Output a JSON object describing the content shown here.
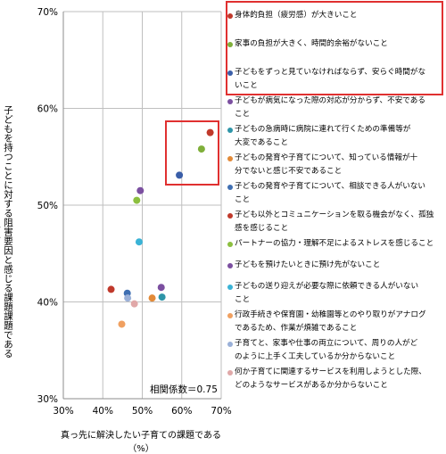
{
  "chart_data": {
    "type": "scatter",
    "xlabel": "真っ先に解決したい子育ての課題である（%）",
    "ylabel": "子どもを持つことに対する阻害要因と感じる課題課題である（%）",
    "xlim": [
      30,
      70
    ],
    "ylim": [
      30,
      70
    ],
    "x_ticks": [
      "30%",
      "40%",
      "50%",
      "60%",
      "70%"
    ],
    "y_ticks": [
      "30%",
      "40%",
      "50%",
      "60%",
      "70%"
    ],
    "grid": true,
    "legend_position": "right",
    "annotation": "相関係数＝0.75",
    "series": [
      {
        "name": "身体的負担（疲労感）が大きいこと",
        "color": "#c0392b",
        "x": 67.2,
        "y": 57.5
      },
      {
        "name": "家事の負担が大きく、時間的余裕がないこと",
        "color": "#7faf3a",
        "x": 65.0,
        "y": 55.8
      },
      {
        "name": "子どもをずっと見ていなければならず、安らぐ時間がないこと",
        "color": "#3a5ea8",
        "x": 59.4,
        "y": 53.1
      },
      {
        "name": "子どもが病気になった際の対応が分からず、不安であること",
        "color": "#7b4fa0",
        "x": 49.5,
        "y": 51.5
      },
      {
        "name": "子どもの急病時に病院に連れて行くための準備等が大変であること",
        "color": "#2e95a8",
        "x": 55.0,
        "y": 40.5
      },
      {
        "name": "子どもの発育や子育てについて、知っている情報が十分でないと感じ不安であること",
        "color": "#e28a38",
        "x": 52.5,
        "y": 40.4
      },
      {
        "name": "子どもの発育や子育てについて、相談できる人がいないこと",
        "color": "#3f6fb2",
        "x": 46.2,
        "y": 40.9
      },
      {
        "name": "子ども以外とコミュニケーションを取る機会がなく、孤独感を感じること",
        "color": "#c0392b",
        "x": 42.1,
        "y": 41.3
      },
      {
        "name": "パートナーの協力・理解不足によるストレスを感じること",
        "color": "#8cbf3f",
        "x": 48.6,
        "y": 50.5
      },
      {
        "name": "子どもを預けたいときに預け先がないこと",
        "color": "#7b4fa0",
        "x": 54.8,
        "y": 41.5
      },
      {
        "name": "子どもの送り迎えが必要な際に依頼できる人がいないこと",
        "color": "#3ab3d6",
        "x": 49.2,
        "y": 46.2
      },
      {
        "name": "行政手続きや保育園・幼稚園等とのやり取りがアナログであるため、作業が煩雑であること",
        "color": "#f0a060",
        "x": 44.8,
        "y": 37.7
      },
      {
        "name": "子育てと、家事や仕事の両立について、周りの人がどのように上手く工夫しているか分からないこと",
        "color": "#9ab0d8",
        "x": 46.3,
        "y": 40.4
      },
      {
        "name": "何か子育てに関連するサービスを利用しようとした際、どのようなサービスがあるか分からないこと",
        "color": "#e0a8a8",
        "x": 48.0,
        "y": 39.8
      }
    ]
  },
  "legend": {
    "items": [
      {
        "lines": [
          "身体的負担（疲労感）が大きいこと"
        ]
      },
      {
        "lines": [
          "家事の負担が大きく、時間的余裕がないこと"
        ]
      },
      {
        "lines": [
          "子どもをずっと見ていなければならず、安らぐ時間がな",
          "いこと"
        ]
      },
      {
        "lines": [
          "子どもが病気になった際の対応が分からず、不安である",
          "こと"
        ]
      },
      {
        "lines": [
          "子どもの急病時に病院に連れて行くための準備等が",
          "大変であること"
        ]
      },
      {
        "lines": [
          "子どもの発育や子育てについて、知っている情報が十",
          "分でないと感じ不安であること"
        ]
      },
      {
        "lines": [
          "子どもの発育や子育てについて、相談できる人がいない",
          "こと"
        ]
      },
      {
        "lines": [
          "子ども以外とコミュニケーションを取る機会がなく、孤独",
          "感を感じること"
        ]
      },
      {
        "lines": [
          "パートナーの協力・理解不足によるストレスを感じること"
        ]
      },
      {
        "lines": [
          "子どもを預けたいときに預け先がないこと"
        ]
      },
      {
        "lines": [
          "子どもの送り迎えが必要な際に依頼できる人がいない",
          "こと"
        ]
      },
      {
        "lines": [
          "行政手続きや保育園・幼稚園等とのやり取りがアナログ",
          "であるため、作業が煩雑であること"
        ]
      },
      {
        "lines": [
          "子育てと、家事や仕事の両立について、周りの人がど",
          "のように上手く工夫しているか分からないこと"
        ]
      },
      {
        "lines": [
          "何か子育てに関連するサービスを利用しようとした際、",
          "どのようなサービスがあるか分からないこと"
        ]
      }
    ]
  },
  "colors": {
    "highlight": "#e03030",
    "grid": "#bfbfbf",
    "axis": "#8c8c8c"
  }
}
